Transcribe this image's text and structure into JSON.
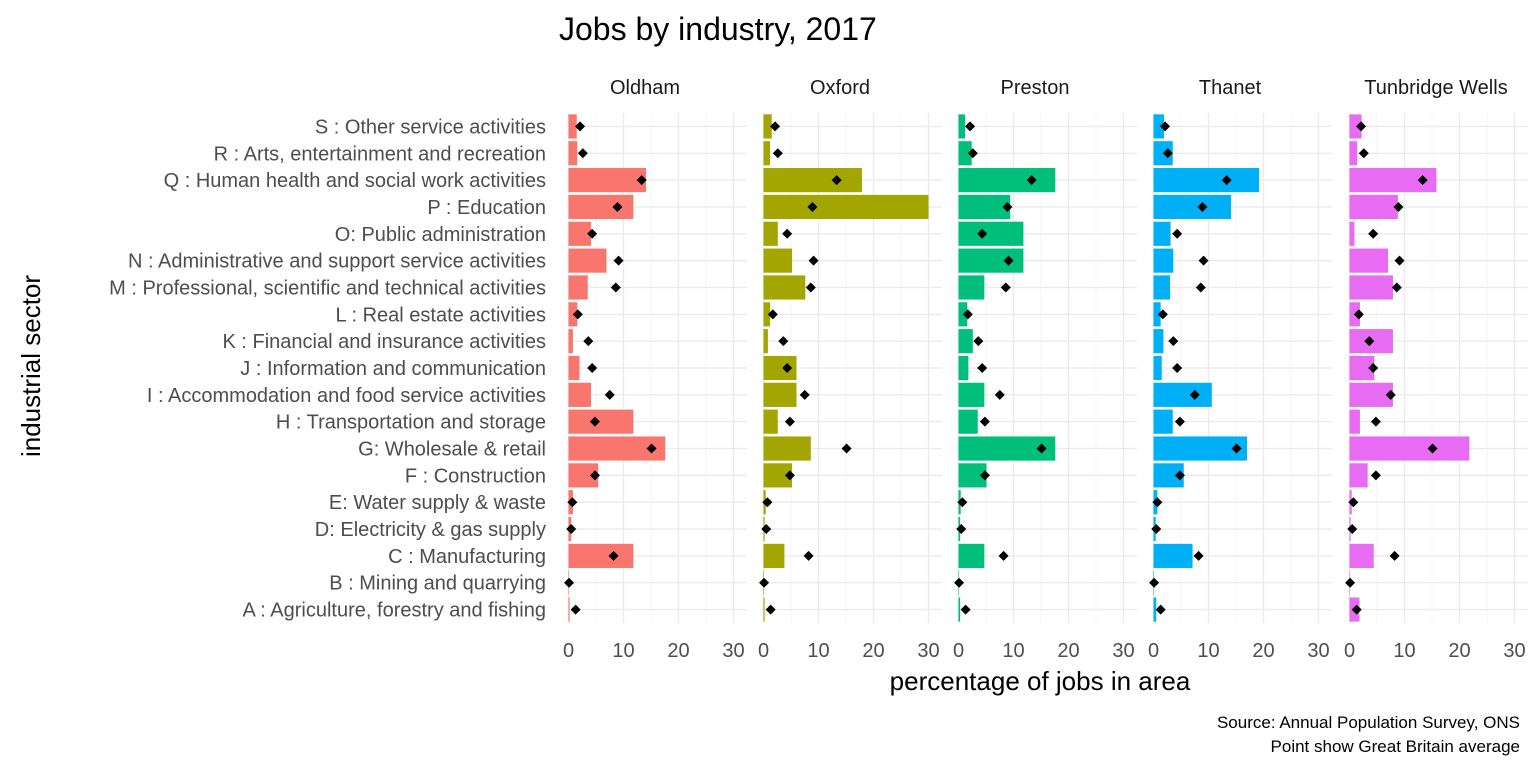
{
  "chart_data": {
    "type": "bar",
    "orientation": "horizontal",
    "title": "Jobs by industry, 2017",
    "xlabel": "percentage of jobs in area",
    "ylabel": "industrial sector",
    "caption_lines": [
      "Source: Annual Population Survey, ONS",
      "Point show Great Britain average"
    ],
    "xlim": [
      0,
      30
    ],
    "xticks": [
      0,
      10,
      20,
      30
    ],
    "grid": true,
    "legend": "none",
    "categories": [
      "A : Agriculture, forestry and fishing",
      "B : Mining and quarrying",
      "C : Manufacturing",
      "D: Electricity & gas supply",
      "E: Water supply & waste",
      "F : Construction",
      "G: Wholesale & retail",
      "H : Transportation and storage",
      "I : Accommodation and food service activities",
      "J : Information and communication",
      "K : Financial and insurance activities",
      "L : Real estate activities",
      "M : Professional, scientific and technical activities",
      "N : Administrative and support service activities",
      "O: Public administration",
      "P : Education",
      "Q : Human health and social work activities",
      "R : Arts, entertainment and recreation",
      "S : Other service activities"
    ],
    "gb_average": [
      1.3,
      0.1,
      8.2,
      0.5,
      0.7,
      4.8,
      15.1,
      4.8,
      7.5,
      4.3,
      3.6,
      1.7,
      8.6,
      9.1,
      4.3,
      8.9,
      13.3,
      2.6,
      2.1
    ],
    "series": [
      {
        "name": "Oldham",
        "color": "#F8766D",
        "values": [
          0.2,
          0.1,
          11.8,
          0.5,
          0.8,
          5.4,
          17.6,
          11.8,
          4.1,
          2.0,
          0.8,
          1.6,
          3.5,
          6.9,
          4.1,
          11.8,
          14.1,
          1.6,
          1.5
        ]
      },
      {
        "name": "Oxford",
        "color": "#A3A500",
        "values": [
          0.2,
          0.1,
          3.8,
          0.2,
          0.4,
          5.2,
          8.6,
          2.6,
          6.0,
          6.0,
          0.8,
          1.2,
          7.6,
          5.2,
          2.6,
          30.0,
          17.9,
          1.2,
          1.5
        ]
      },
      {
        "name": "Preston",
        "color": "#00BF7D",
        "values": [
          0.3,
          0.1,
          4.7,
          0.3,
          0.4,
          5.1,
          17.6,
          3.5,
          4.7,
          1.8,
          2.6,
          1.6,
          4.7,
          11.8,
          11.8,
          9.4,
          17.6,
          2.4,
          1.2
        ]
      },
      {
        "name": "Thanet",
        "color": "#00B0F6",
        "values": [
          0.5,
          0.1,
          7.1,
          0.4,
          0.7,
          5.5,
          17.0,
          3.5,
          10.6,
          1.5,
          1.8,
          1.3,
          3.0,
          3.6,
          3.1,
          14.1,
          19.2,
          3.5,
          1.9
        ]
      },
      {
        "name": "Tunbridge Wells",
        "color": "#E76BF3",
        "values": [
          1.8,
          0.1,
          4.4,
          0.2,
          0.4,
          3.3,
          21.8,
          1.9,
          7.9,
          4.5,
          7.9,
          1.9,
          7.9,
          7.0,
          0.9,
          8.8,
          15.8,
          1.4,
          2.2
        ]
      }
    ]
  }
}
